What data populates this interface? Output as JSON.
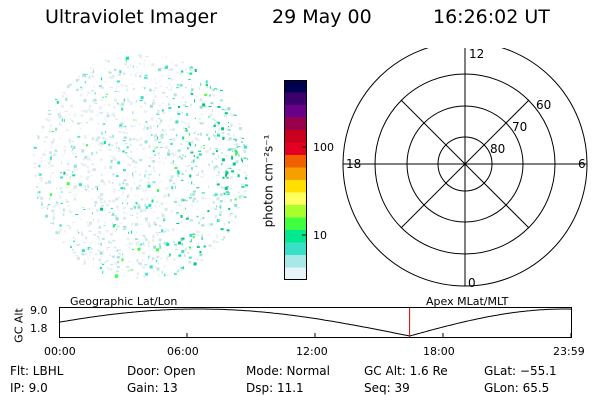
{
  "header": {
    "title": "Ultraviolet Imager",
    "date": "29 May 00",
    "time": "16:26:02 UT"
  },
  "colorbar": {
    "unit_label": "photon cm⁻²s⁻¹",
    "ticks": [
      "100",
      "10"
    ],
    "colors": [
      "#000050",
      "#3c006c",
      "#6a0088",
      "#98004c",
      "#c8001e",
      "#e40020",
      "#f06000",
      "#f6a000",
      "#ffe000",
      "#ffff60",
      "#a8ff2c",
      "#40ff40",
      "#00e890",
      "#38e0c8",
      "#a8e8e8",
      "#e8f4f8"
    ]
  },
  "polar_plot": {
    "mlt_labels": {
      "top": "12",
      "bottom": "0",
      "left": "18",
      "right": "6"
    },
    "lat_labels": [
      "60",
      "70",
      "80"
    ]
  },
  "timeline": {
    "ylabel": "GC Alt",
    "y_top": "9.0",
    "y_bottom": "1.8",
    "left_title": "Geographic Lat/Lon",
    "right_title": "Apex MLat/MLT",
    "x_ticks": [
      "00:00",
      "06:00",
      "12:00",
      "18:00",
      "23:59"
    ],
    "current_marker_time": "16:26",
    "marker_color": "#dd0000"
  },
  "info": {
    "flt": "Flt: LBHL",
    "ip": "IP:  9.0",
    "door": "Door: Open",
    "gain": "Gain: 13",
    "mode": "Mode: Normal",
    "dsp": "Dsp:   11.1",
    "gcalt": "GC Alt: 1.6 Re",
    "seq": "Seq: 39",
    "glat": "GLat: −55.1",
    "glon": "GLon:  65.5"
  }
}
